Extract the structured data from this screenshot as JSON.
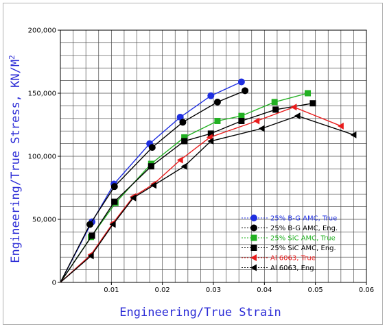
{
  "chart_data": {
    "type": "line",
    "xlabel": "Engineering/True Strain",
    "ylabel_main": "Engineering/True Stress, KN/M",
    "ylabel_sup": "2",
    "xlim": [
      0,
      0.06
    ],
    "ylim": [
      0,
      200000
    ],
    "x_ticks": [
      {
        "value": 0.01,
        "label": "0.01"
      },
      {
        "value": 0.02,
        "label": "0.02"
      },
      {
        "value": 0.03,
        "label": "0.03"
      },
      {
        "value": 0.04,
        "label": "0.04"
      },
      {
        "value": 0.05,
        "label": "0.05"
      },
      {
        "value": 0.06,
        "label": "0.06"
      }
    ],
    "y_ticks": [
      {
        "value": 0,
        "label": "0"
      },
      {
        "value": 50000,
        "label": "50,000"
      },
      {
        "value": 100000,
        "label": "100,000"
      },
      {
        "value": 150000,
        "label": "150,000"
      },
      {
        "value": 200000,
        "label": "200,000"
      }
    ],
    "grid": true,
    "grid_x_step": 0.0025,
    "grid_y_step": 10000,
    "legend_position": "bottom-right",
    "series": [
      {
        "name": "25% B-G AMC, True",
        "color": "#1f2fe0",
        "marker": "circle",
        "x": [
          0,
          0.0062,
          0.0105,
          0.0175,
          0.0235,
          0.0295,
          0.0355
        ],
        "y": [
          0,
          48000,
          78000,
          110000,
          131000,
          148000,
          159000
        ]
      },
      {
        "name": "25% B-G AMC, Eng.",
        "color": "#000000",
        "marker": "circle",
        "x": [
          0,
          0.0058,
          0.0106,
          0.018,
          0.024,
          0.0308,
          0.0362
        ],
        "y": [
          0,
          46000,
          76000,
          107000,
          127000,
          143000,
          152000
        ]
      },
      {
        "name": "25% SiC AMC, True",
        "color": "#22b022",
        "marker": "square",
        "x": [
          0,
          0.006,
          0.0108,
          0.0178,
          0.0243,
          0.0308,
          0.0355,
          0.042,
          0.0485
        ],
        "y": [
          0,
          36000,
          63000,
          94000,
          115000,
          128000,
          132000,
          143000,
          150000
        ]
      },
      {
        "name": "25% SiC AMC, Eng.",
        "color": "#000000",
        "marker": "square",
        "x": [
          0,
          0.0062,
          0.0106,
          0.0178,
          0.0243,
          0.0295,
          0.0355,
          0.0422,
          0.0495
        ],
        "y": [
          0,
          37000,
          64000,
          92000,
          112000,
          118000,
          128000,
          137000,
          142000
        ]
      },
      {
        "name": "Al 6063, True",
        "color": "#e81c1c",
        "marker": "triangle-left",
        "x": [
          0,
          0.006,
          0.0103,
          0.0143,
          0.0183,
          0.0235,
          0.0293,
          0.0385,
          0.0458,
          0.055
        ],
        "y": [
          0,
          22000,
          47000,
          68000,
          78000,
          97000,
          115000,
          128000,
          139000,
          124000
        ]
      },
      {
        "name": "Al 6063, Eng.",
        "color": "#000000",
        "marker": "triangle-left",
        "x": [
          0,
          0.006,
          0.0103,
          0.0143,
          0.0183,
          0.0243,
          0.0295,
          0.0395,
          0.0465,
          0.0575
        ],
        "y": [
          0,
          21000,
          46000,
          67000,
          77000,
          92000,
          112000,
          122000,
          132000,
          117000
        ]
      }
    ]
  }
}
